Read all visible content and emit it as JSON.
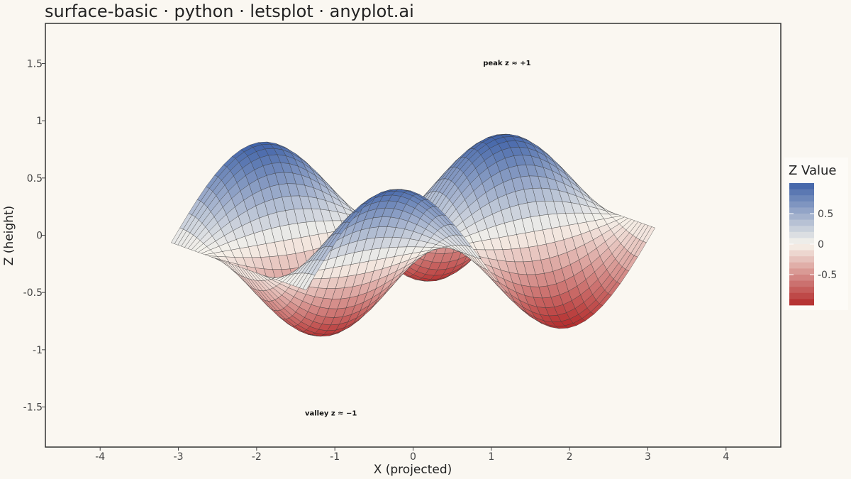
{
  "chart_data": {
    "type": "surface",
    "title": "surface-basic · python · letsplot · anyplot.ai",
    "xlabel": "X (projected)",
    "ylabel": "Z (height)",
    "x_ticks": [
      "-4",
      "-3",
      "-2",
      "-1",
      "0",
      "1",
      "2",
      "3",
      "4"
    ],
    "x_tick_values": [
      -4,
      -3,
      -2,
      -1,
      0,
      1,
      2,
      3,
      4
    ],
    "y_ticks": [
      "-1.5",
      "-1",
      "-0.5",
      "0",
      "0.5",
      "1",
      "1.5"
    ],
    "y_tick_values": [
      -1.5,
      -1,
      -0.5,
      0,
      0.5,
      1,
      1.5
    ],
    "xlim": [
      -4.7,
      4.7
    ],
    "ylim": [
      -1.85,
      1.85
    ],
    "surface_function": "z = sin(x) * cos(y)",
    "grid_range": [
      -3.14,
      3.14
    ],
    "grid_size": 40,
    "legend": {
      "title": "Z Value",
      "ticks": [
        "0.5",
        "0",
        "-0.5"
      ],
      "tick_values": [
        0.5,
        0,
        -0.5
      ],
      "range": [
        -1,
        1
      ],
      "placement": "right"
    },
    "annotations": [
      {
        "label": "peak  z ≈ +1",
        "x": 1.2,
        "y": 1.51
      },
      {
        "label": "valley  z ≈ −1",
        "x": -1.05,
        "y": -1.55
      }
    ],
    "colors": {
      "low": "#b42b2b",
      "mid": "#f7f4ec",
      "high": "#3f62a8",
      "background": "#faf7f1",
      "frame": "#333333"
    }
  }
}
